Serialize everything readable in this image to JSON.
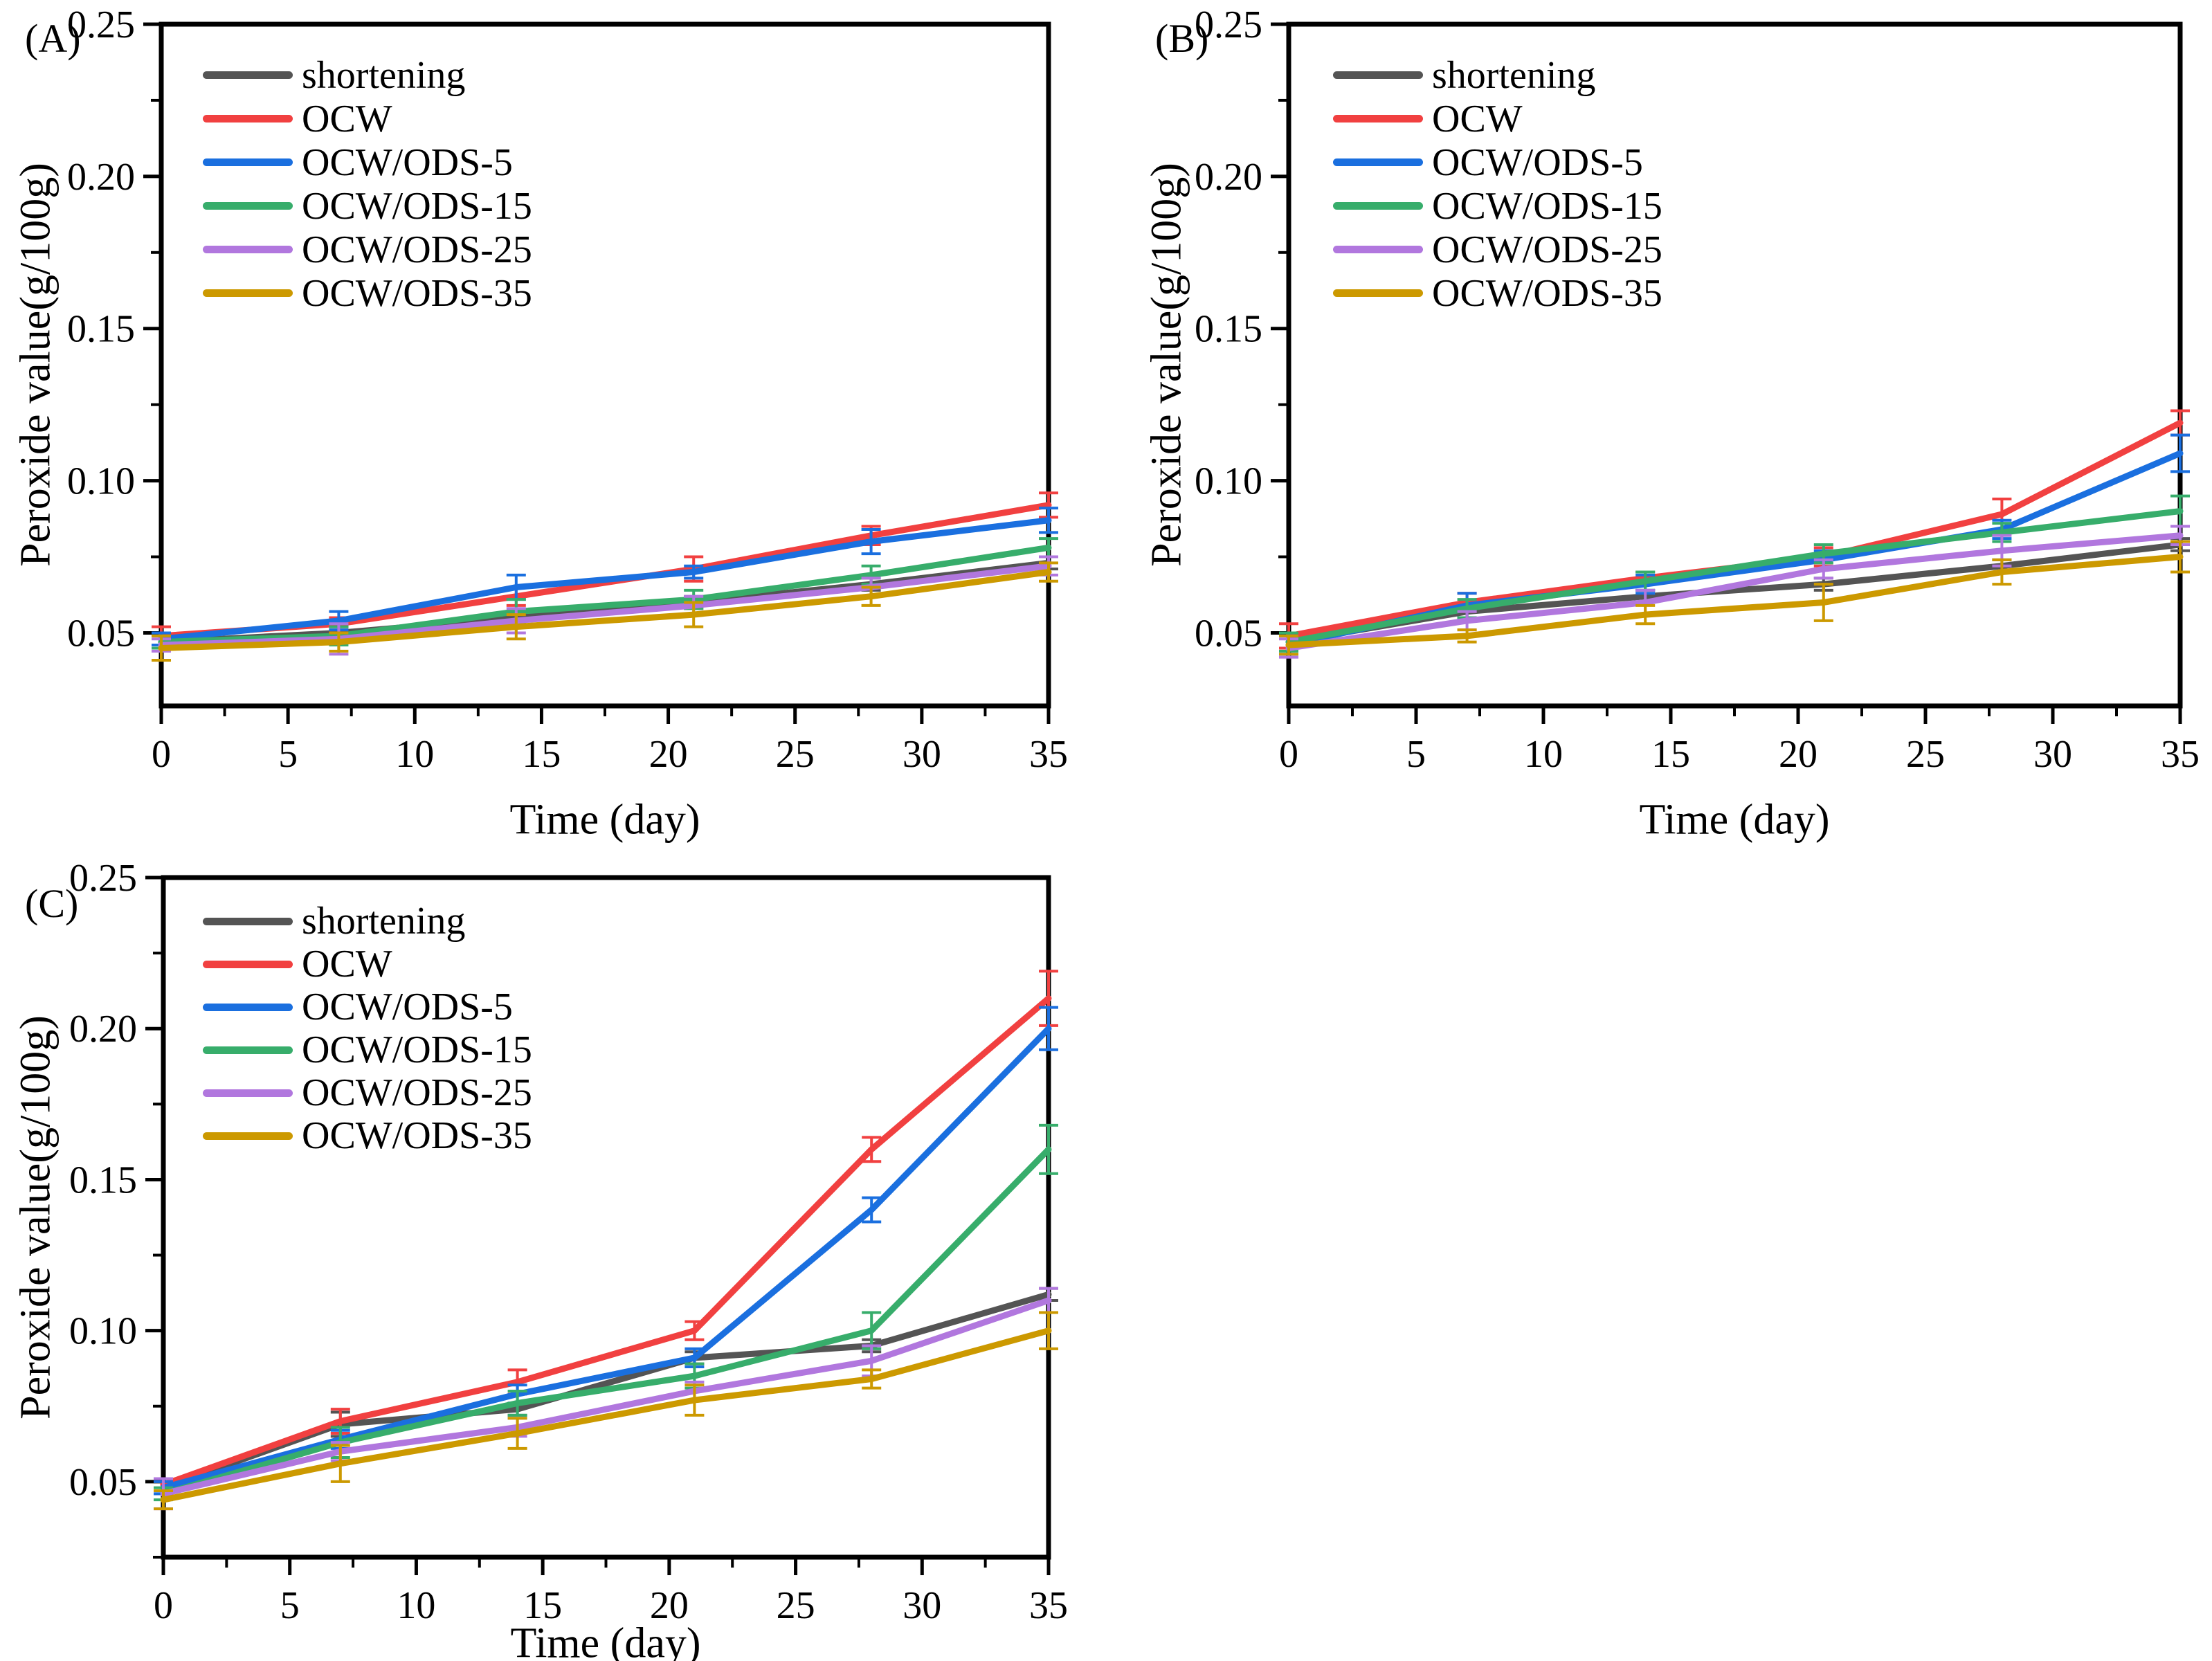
{
  "figure": {
    "background": "#ffffff",
    "x_axis_label": "Time (day)",
    "y_axis_label": "Peroxide value(g/100g)"
  },
  "chart_data": [
    {
      "type": "line",
      "panel_label": "(A)",
      "x_label": "Time (day)",
      "y_label": "Peroxide value(g/100g)",
      "x": [
        0,
        7,
        14,
        21,
        28,
        35
      ],
      "xlim": [
        0,
        35
      ],
      "ylim": [
        0.026,
        0.25
      ],
      "x_ticks": [
        0,
        5,
        10,
        15,
        20,
        25,
        30,
        35
      ],
      "x_minor_step": 2.5,
      "y_ticks": [
        0.05,
        0.1,
        0.15,
        0.2,
        0.25
      ],
      "y_tick_labels": [
        "0.05",
        "0.10",
        "0.15",
        "0.20",
        "0.25"
      ],
      "y_minor_step": 0.025,
      "grid": false,
      "legend_position": "top-left",
      "series": [
        {
          "name": "shortening",
          "color": "#545454",
          "values": [
            0.047,
            0.05,
            0.055,
            0.06,
            0.066,
            0.073
          ],
          "errors": [
            0.002,
            0.002,
            0.002,
            0.002,
            0.002,
            0.002
          ]
        },
        {
          "name": "OCW",
          "color": "#F14040",
          "values": [
            0.049,
            0.053,
            0.062,
            0.071,
            0.082,
            0.092
          ],
          "errors": [
            0.003,
            0.002,
            0.003,
            0.004,
            0.003,
            0.004
          ]
        },
        {
          "name": "OCW/ODS-5",
          "color": "#1A6FDF",
          "values": [
            0.048,
            0.054,
            0.065,
            0.07,
            0.08,
            0.087
          ],
          "errors": [
            0.002,
            0.003,
            0.004,
            0.002,
            0.004,
            0.004
          ]
        },
        {
          "name": "OCW/ODS-15",
          "color": "#37AD6B",
          "values": [
            0.047,
            0.049,
            0.057,
            0.061,
            0.069,
            0.078
          ],
          "errors": [
            0.002,
            0.003,
            0.004,
            0.003,
            0.003,
            0.003
          ]
        },
        {
          "name": "OCW/ODS-25",
          "color": "#B177DE",
          "values": [
            0.046,
            0.048,
            0.054,
            0.059,
            0.065,
            0.072
          ],
          "errors": [
            0.002,
            0.005,
            0.004,
            0.003,
            0.003,
            0.003
          ]
        },
        {
          "name": "OCW/ODS-35",
          "color": "#CC9900",
          "values": [
            0.045,
            0.047,
            0.052,
            0.056,
            0.062,
            0.07
          ],
          "errors": [
            0.004,
            0.003,
            0.004,
            0.004,
            0.003,
            0.003
          ]
        }
      ]
    },
    {
      "type": "line",
      "panel_label": "(B)",
      "x_label": "Time (day)",
      "y_label": "Peroxide value(g/100g)",
      "x": [
        0,
        7,
        14,
        21,
        28,
        35
      ],
      "xlim": [
        0,
        35
      ],
      "ylim": [
        0.026,
        0.25
      ],
      "x_ticks": [
        0,
        5,
        10,
        15,
        20,
        25,
        30,
        35
      ],
      "x_minor_step": 2.5,
      "y_ticks": [
        0.05,
        0.1,
        0.15,
        0.2,
        0.25
      ],
      "y_tick_labels": [
        "0.05",
        "0.10",
        "0.15",
        "0.20",
        "0.25"
      ],
      "y_minor_step": 0.025,
      "grid": false,
      "legend_position": "top-left",
      "series": [
        {
          "name": "shortening",
          "color": "#545454",
          "values": [
            0.047,
            0.057,
            0.062,
            0.066,
            0.072,
            0.079
          ],
          "errors": [
            0.002,
            0.003,
            0.002,
            0.002,
            0.002,
            0.002
          ]
        },
        {
          "name": "OCW",
          "color": "#F14040",
          "values": [
            0.049,
            0.06,
            0.068,
            0.075,
            0.089,
            0.119
          ],
          "errors": [
            0.004,
            0.003,
            0.002,
            0.003,
            0.005,
            0.004
          ]
        },
        {
          "name": "OCW/ODS-5",
          "color": "#1A6FDF",
          "values": [
            0.046,
            0.059,
            0.066,
            0.074,
            0.084,
            0.109
          ],
          "errors": [
            0.003,
            0.004,
            0.003,
            0.003,
            0.003,
            0.006
          ]
        },
        {
          "name": "OCW/ODS-15",
          "color": "#37AD6B",
          "values": [
            0.047,
            0.058,
            0.067,
            0.076,
            0.083,
            0.09
          ],
          "errors": [
            0.003,
            0.003,
            0.003,
            0.003,
            0.003,
            0.005
          ]
        },
        {
          "name": "OCW/ODS-25",
          "color": "#B177DE",
          "values": [
            0.045,
            0.054,
            0.06,
            0.071,
            0.077,
            0.082
          ],
          "errors": [
            0.003,
            0.003,
            0.004,
            0.003,
            0.005,
            0.003
          ]
        },
        {
          "name": "OCW/ODS-35",
          "color": "#CC9900",
          "values": [
            0.046,
            0.049,
            0.056,
            0.06,
            0.07,
            0.075
          ],
          "errors": [
            0.003,
            0.002,
            0.003,
            0.006,
            0.004,
            0.005
          ]
        }
      ]
    },
    {
      "type": "line",
      "panel_label": "(C)",
      "x_label": "Time (day)",
      "y_label": "Peroxide value(g/100g)",
      "x": [
        0,
        7,
        14,
        21,
        28,
        35
      ],
      "xlim": [
        0,
        35
      ],
      "ylim": [
        0.025,
        0.25
      ],
      "x_ticks": [
        0,
        5,
        10,
        15,
        20,
        25,
        30,
        35
      ],
      "x_minor_step": 2.5,
      "y_ticks": [
        0.05,
        0.1,
        0.15,
        0.2,
        0.25
      ],
      "y_tick_labels": [
        "0.05",
        "0.10",
        "0.15",
        "0.20",
        "0.25"
      ],
      "y_minor_step": 0.025,
      "grid": false,
      "legend_position": "top-left",
      "series": [
        {
          "name": "shortening",
          "color": "#545454",
          "values": [
            0.048,
            0.069,
            0.074,
            0.091,
            0.095,
            0.112
          ],
          "errors": [
            0.002,
            0.004,
            0.002,
            0.002,
            0.002,
            0.002
          ]
        },
        {
          "name": "OCW",
          "color": "#F14040",
          "values": [
            0.049,
            0.07,
            0.083,
            0.1,
            0.16,
            0.21
          ],
          "errors": [
            0.002,
            0.004,
            0.004,
            0.003,
            0.004,
            0.009
          ]
        },
        {
          "name": "OCW/ODS-5",
          "color": "#1A6FDF",
          "values": [
            0.048,
            0.064,
            0.079,
            0.091,
            0.14,
            0.2
          ],
          "errors": [
            0.002,
            0.003,
            0.003,
            0.003,
            0.004,
            0.007
          ]
        },
        {
          "name": "OCW/ODS-15",
          "color": "#37AD6B",
          "values": [
            0.046,
            0.063,
            0.076,
            0.085,
            0.1,
            0.16
          ],
          "errors": [
            0.002,
            0.005,
            0.004,
            0.004,
            0.006,
            0.008
          ]
        },
        {
          "name": "OCW/ODS-25",
          "color": "#B177DE",
          "values": [
            0.046,
            0.06,
            0.068,
            0.08,
            0.09,
            0.11
          ],
          "errors": [
            0.005,
            0.003,
            0.003,
            0.003,
            0.005,
            0.004
          ]
        },
        {
          "name": "OCW/ODS-35",
          "color": "#CC9900",
          "values": [
            0.044,
            0.056,
            0.066,
            0.077,
            0.084,
            0.1
          ],
          "errors": [
            0.003,
            0.006,
            0.005,
            0.005,
            0.003,
            0.006
          ]
        }
      ]
    }
  ]
}
